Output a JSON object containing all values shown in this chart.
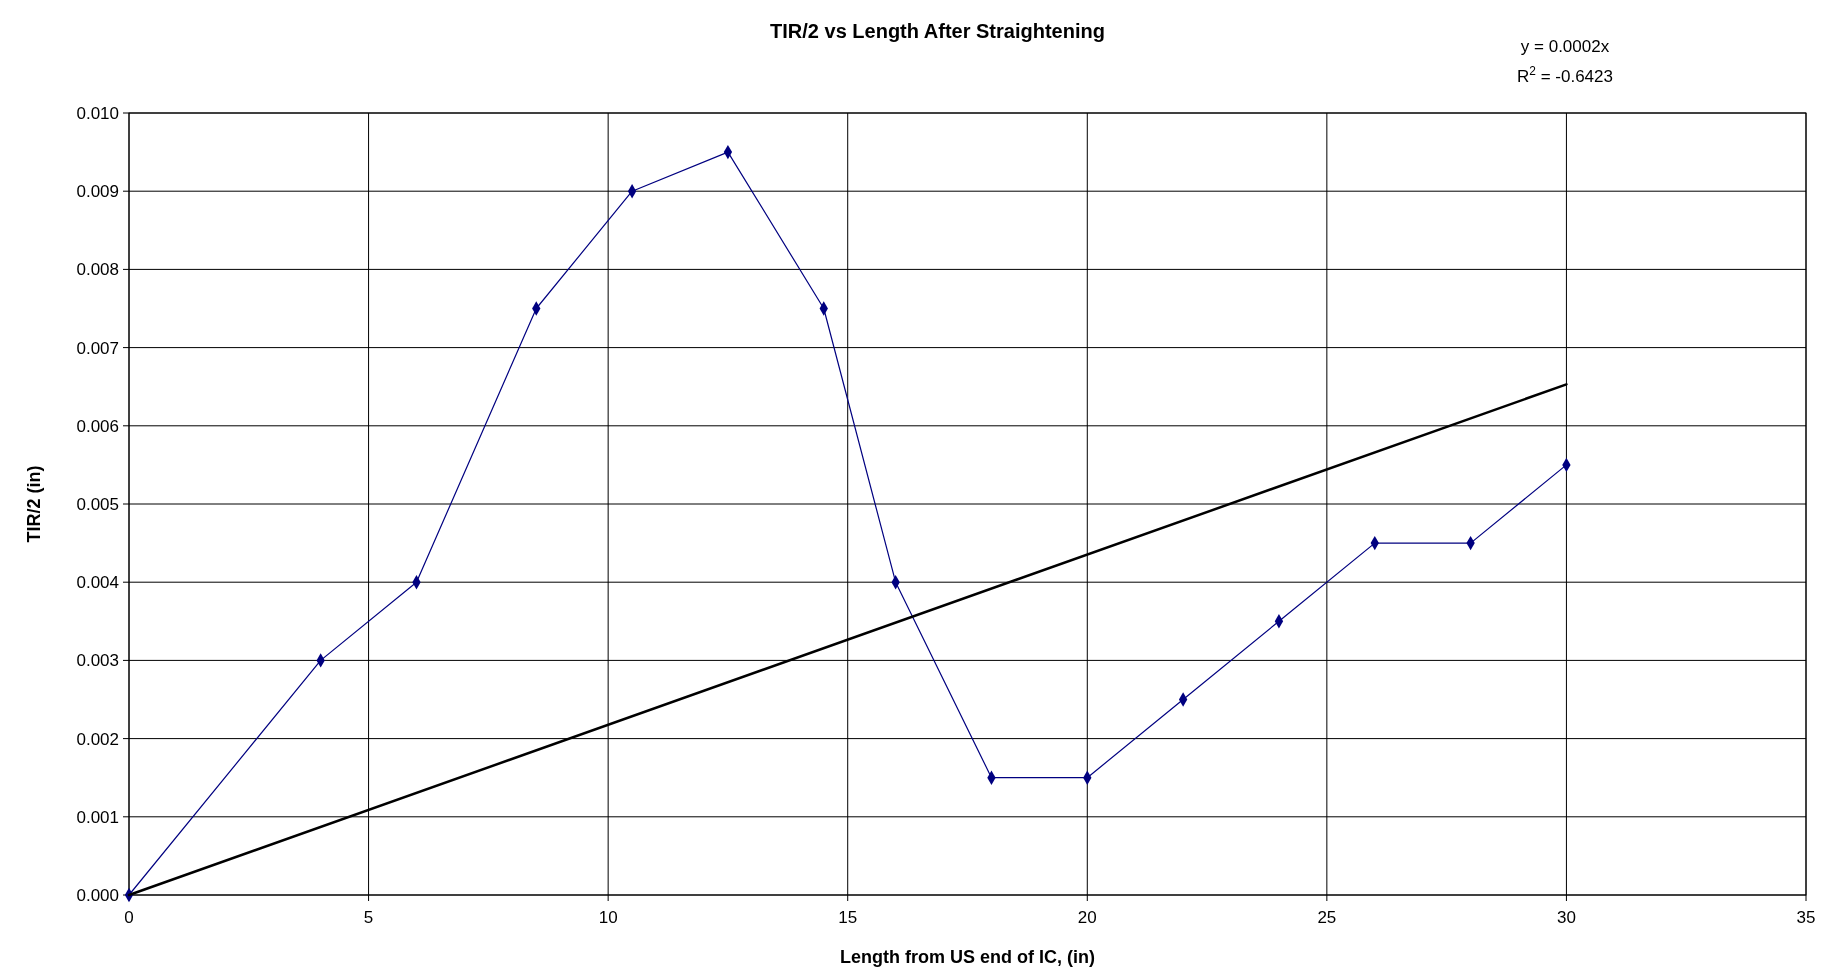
{
  "chart_data": {
    "type": "line",
    "title": "TIR/2 vs Length After Straightening",
    "xlabel": "Length from US end of IC, (in)",
    "ylabel": "TIR/2 (in)",
    "annotations": [
      "y = 0.0002x",
      "R$^{2}$ = -0.6423"
    ],
    "series": [
      {
        "color": "#000080",
        "x": [
          0,
          4,
          6,
          8.5,
          10.5,
          12.5,
          14.5,
          16,
          18,
          20,
          22,
          24,
          26,
          28,
          30
        ],
        "values": [
          0,
          0.003,
          0.004,
          0.0075,
          0.009,
          0.0095,
          0.0075,
          0.004,
          0.0015,
          0.0015,
          0.0025,
          0.0035,
          0.0045,
          0.0045,
          0.0055
        ]
      },
      {
        "type": "line",
        "color": "#000000",
        "marker": "none",
        "x": [
          0,
          30
        ],
        "values": [
          0,
          0.00653
        ]
      }
    ],
    "xlim": [
      0,
      35
    ],
    "xticks": [
      0,
      5,
      10,
      15,
      20,
      25,
      30,
      35
    ],
    "ylim": [
      0,
      0.01
    ],
    "yticks": [
      {
        "value": 0,
        "label": "0.000"
      },
      {
        "value": 0.001,
        "label": "0.001"
      },
      {
        "value": 0.002,
        "label": "0.002"
      },
      {
        "value": 0.003,
        "label": "0.003"
      },
      {
        "value": 0.004,
        "label": "0.004"
      },
      {
        "value": 0.005,
        "label": "0.005"
      },
      {
        "value": 0.006,
        "label": "0.006"
      },
      {
        "value": 0.007,
        "label": "0.007"
      },
      {
        "value": 0.008,
        "label": "0.008"
      },
      {
        "value": 0.009,
        "label": "0.009"
      },
      {
        "value": 0.01,
        "label": "0.010"
      }
    ],
    "grid": true,
    "marker": "diamond",
    "line_style": "solid"
  }
}
